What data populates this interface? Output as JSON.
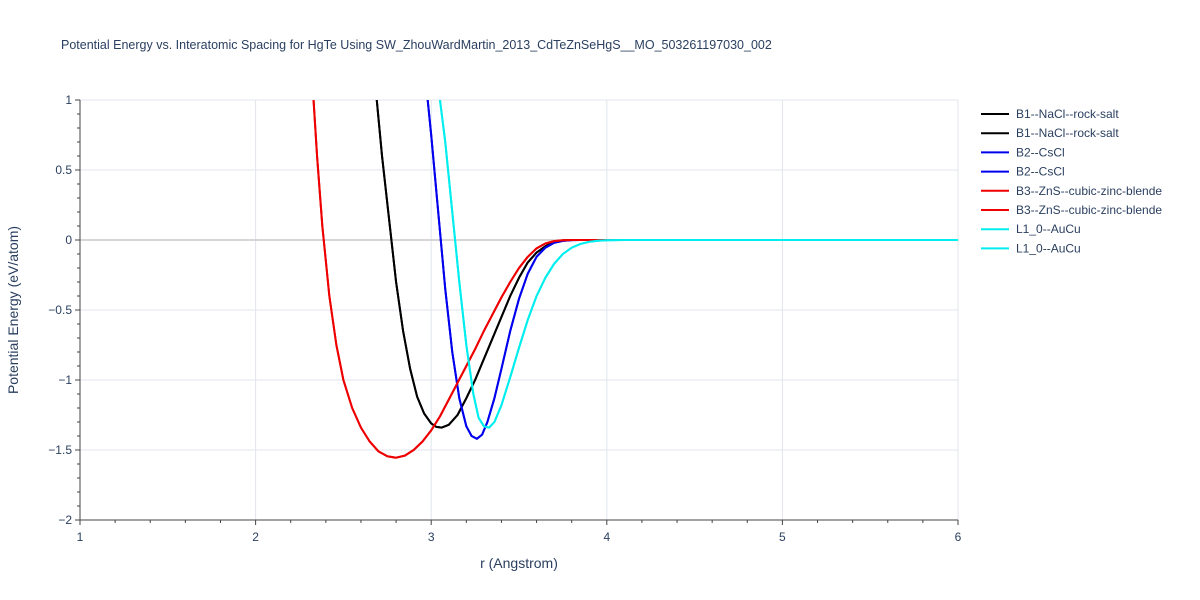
{
  "chart_data": {
    "type": "line",
    "title": "Potential Energy vs. Interatomic Spacing for HgTe Using SW_ZhouWardMartin_2013_CdTeZnSeHgS__MO_503261197030_002",
    "xlabel": "r (Angstrom)",
    "ylabel": "Potential Energy (eV/atom)",
    "xlim": [
      1,
      6
    ],
    "ylim": [
      -2,
      1
    ],
    "x_ticks": [
      "1",
      "2",
      "3",
      "4",
      "5",
      "6"
    ],
    "y_ticks": [
      "−2",
      "−1.5",
      "−1",
      "−0.5",
      "0",
      "0.5",
      "1"
    ],
    "grid": true,
    "legend_position": "right",
    "series": [
      {
        "name": "B1--NaCl--rock-salt",
        "color": "#000000",
        "x": [
          2.69,
          2.72,
          2.76,
          2.8,
          2.84,
          2.88,
          2.92,
          2.96,
          3.0,
          3.03,
          3.06,
          3.1,
          3.15,
          3.2,
          3.25,
          3.3,
          3.35,
          3.4,
          3.45,
          3.5,
          3.55,
          3.6,
          3.65,
          3.7,
          3.75,
          3.8,
          3.85,
          3.9,
          6.0
        ],
        "y": [
          1.0,
          0.6,
          0.15,
          -0.3,
          -0.65,
          -0.92,
          -1.12,
          -1.24,
          -1.31,
          -1.335,
          -1.34,
          -1.32,
          -1.25,
          -1.13,
          -1.0,
          -0.85,
          -0.7,
          -0.55,
          -0.4,
          -0.27,
          -0.16,
          -0.09,
          -0.045,
          -0.015,
          -0.004,
          0.0,
          0.0,
          0.0,
          0.0
        ]
      },
      {
        "name": "B1--NaCl--rock-salt",
        "color": "#000000",
        "x": [
          2.69,
          2.72,
          2.76,
          2.8,
          2.84,
          2.88,
          2.92,
          2.96,
          3.0,
          3.03,
          3.06,
          3.1,
          3.15,
          3.2,
          3.25,
          3.3,
          3.35,
          3.4,
          3.45,
          3.5,
          3.55,
          3.6,
          3.65,
          3.7,
          3.75,
          3.8,
          3.85,
          3.9,
          6.0
        ],
        "y": [
          1.0,
          0.6,
          0.15,
          -0.3,
          -0.65,
          -0.92,
          -1.12,
          -1.24,
          -1.31,
          -1.335,
          -1.34,
          -1.32,
          -1.25,
          -1.13,
          -1.0,
          -0.85,
          -0.7,
          -0.55,
          -0.4,
          -0.27,
          -0.16,
          -0.09,
          -0.045,
          -0.015,
          -0.004,
          0.0,
          0.0,
          0.0,
          0.0
        ]
      },
      {
        "name": "B2--CsCl",
        "color": "#0000ee",
        "x": [
          2.98,
          3.0,
          3.04,
          3.08,
          3.12,
          3.16,
          3.2,
          3.23,
          3.26,
          3.29,
          3.32,
          3.36,
          3.4,
          3.45,
          3.5,
          3.55,
          3.6,
          3.65,
          3.7,
          3.75,
          3.8,
          3.85,
          3.9,
          6.0
        ],
        "y": [
          1.0,
          0.75,
          0.2,
          -0.35,
          -0.8,
          -1.13,
          -1.33,
          -1.4,
          -1.42,
          -1.39,
          -1.3,
          -1.13,
          -0.92,
          -0.65,
          -0.42,
          -0.24,
          -0.12,
          -0.055,
          -0.02,
          -0.006,
          -0.001,
          0.0,
          0.0,
          0.0
        ]
      },
      {
        "name": "B2--CsCl",
        "color": "#0000ee",
        "x": [
          2.98,
          3.0,
          3.04,
          3.08,
          3.12,
          3.16,
          3.2,
          3.23,
          3.26,
          3.29,
          3.32,
          3.36,
          3.4,
          3.45,
          3.5,
          3.55,
          3.6,
          3.65,
          3.7,
          3.75,
          3.8,
          3.85,
          3.9,
          6.0
        ],
        "y": [
          1.0,
          0.75,
          0.2,
          -0.35,
          -0.8,
          -1.13,
          -1.33,
          -1.4,
          -1.42,
          -1.39,
          -1.3,
          -1.13,
          -0.92,
          -0.65,
          -0.42,
          -0.24,
          -0.12,
          -0.055,
          -0.02,
          -0.006,
          -0.001,
          0.0,
          0.0,
          0.0
        ]
      },
      {
        "name": "B3--ZnS--cubic-zinc-blende",
        "color": "#ee0000",
        "x": [
          2.33,
          2.35,
          2.38,
          2.42,
          2.46,
          2.5,
          2.55,
          2.6,
          2.65,
          2.7,
          2.75,
          2.8,
          2.85,
          2.9,
          2.95,
          3.0,
          3.05,
          3.1,
          3.15,
          3.2,
          3.25,
          3.3,
          3.35,
          3.4,
          3.45,
          3.5,
          3.55,
          3.6,
          3.65,
          3.7,
          3.75,
          3.8,
          3.85,
          3.9,
          6.0
        ],
        "y": [
          1.0,
          0.6,
          0.1,
          -0.4,
          -0.75,
          -1.0,
          -1.2,
          -1.34,
          -1.44,
          -1.51,
          -1.545,
          -1.555,
          -1.54,
          -1.5,
          -1.44,
          -1.36,
          -1.26,
          -1.14,
          -1.02,
          -0.9,
          -0.78,
          -0.65,
          -0.53,
          -0.41,
          -0.3,
          -0.2,
          -0.12,
          -0.06,
          -0.025,
          -0.008,
          -0.002,
          0.0,
          0.0,
          0.0,
          0.0
        ]
      },
      {
        "name": "B3--ZnS--cubic-zinc-blende",
        "color": "#ee0000",
        "x": [
          2.33,
          2.35,
          2.38,
          2.42,
          2.46,
          2.5,
          2.55,
          2.6,
          2.65,
          2.7,
          2.75,
          2.8,
          2.85,
          2.9,
          2.95,
          3.0,
          3.05,
          3.1,
          3.15,
          3.2,
          3.25,
          3.3,
          3.35,
          3.4,
          3.45,
          3.5,
          3.55,
          3.6,
          3.65,
          3.7,
          3.75,
          3.8,
          3.85,
          3.9,
          6.0
        ],
        "y": [
          1.0,
          0.6,
          0.1,
          -0.4,
          -0.75,
          -1.0,
          -1.2,
          -1.34,
          -1.44,
          -1.51,
          -1.545,
          -1.555,
          -1.54,
          -1.5,
          -1.44,
          -1.36,
          -1.26,
          -1.14,
          -1.02,
          -0.9,
          -0.78,
          -0.65,
          -0.53,
          -0.41,
          -0.3,
          -0.2,
          -0.12,
          -0.06,
          -0.025,
          -0.008,
          -0.002,
          0.0,
          0.0,
          0.0,
          0.0
        ]
      },
      {
        "name": "L1_0--AuCu",
        "color": "#00eeee",
        "x": [
          3.05,
          3.08,
          3.12,
          3.16,
          3.2,
          3.24,
          3.27,
          3.3,
          3.33,
          3.36,
          3.4,
          3.45,
          3.5,
          3.55,
          3.6,
          3.65,
          3.7,
          3.75,
          3.8,
          3.85,
          3.9,
          3.95,
          4.0,
          4.05,
          4.1,
          4.15,
          4.2,
          6.0
        ],
        "y": [
          1.0,
          0.7,
          0.2,
          -0.3,
          -0.75,
          -1.1,
          -1.27,
          -1.33,
          -1.34,
          -1.3,
          -1.18,
          -0.98,
          -0.77,
          -0.57,
          -0.4,
          -0.27,
          -0.17,
          -0.1,
          -0.055,
          -0.028,
          -0.013,
          -0.005,
          -0.002,
          -0.001,
          0.0,
          0.0,
          0.0,
          0.0
        ]
      },
      {
        "name": "L1_0--AuCu",
        "color": "#00eeee",
        "x": [
          3.05,
          3.08,
          3.12,
          3.16,
          3.2,
          3.24,
          3.27,
          3.3,
          3.33,
          3.36,
          3.4,
          3.45,
          3.5,
          3.55,
          3.6,
          3.65,
          3.7,
          3.75,
          3.8,
          3.85,
          3.9,
          3.95,
          4.0,
          4.05,
          4.1,
          4.15,
          4.2,
          6.0
        ],
        "y": [
          1.0,
          0.7,
          0.2,
          -0.3,
          -0.75,
          -1.1,
          -1.27,
          -1.33,
          -1.34,
          -1.3,
          -1.18,
          -0.98,
          -0.77,
          -0.57,
          -0.4,
          -0.27,
          -0.17,
          -0.1,
          -0.055,
          -0.028,
          -0.013,
          -0.005,
          -0.002,
          -0.001,
          0.0,
          0.0,
          0.0,
          0.0
        ]
      }
    ]
  }
}
